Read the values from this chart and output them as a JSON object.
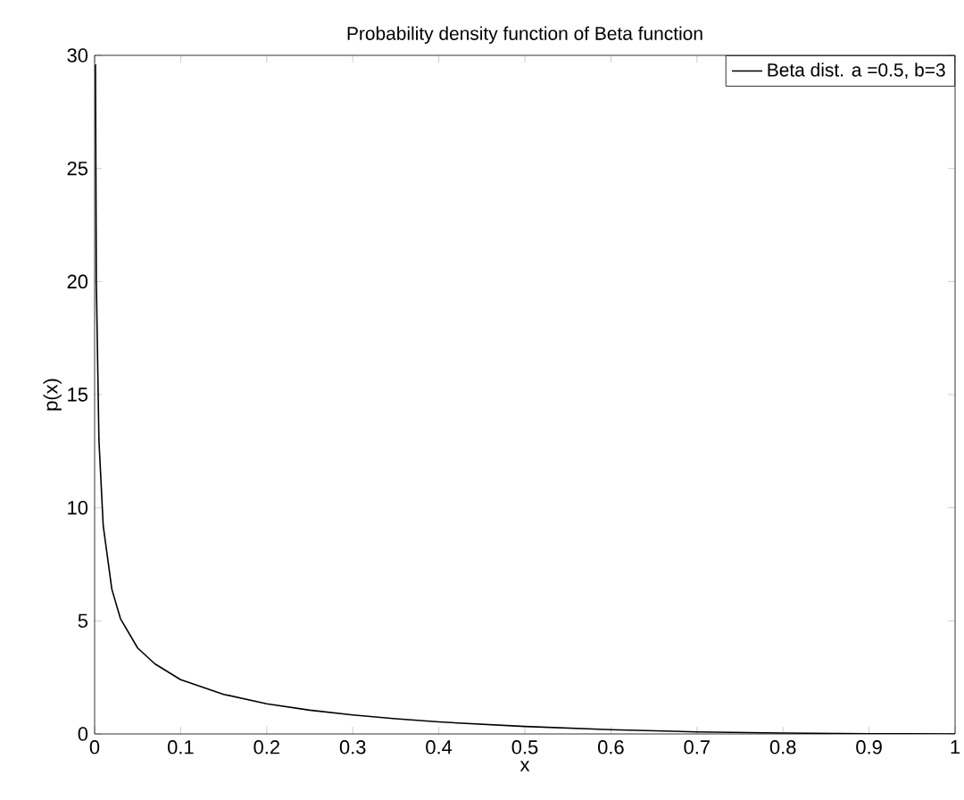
{
  "chart_data": {
    "type": "line",
    "title": "Probability density function of Beta function",
    "xlabel": "x",
    "ylabel": "p(x)",
    "x": [
      0.001,
      0.002,
      0.005,
      0.01,
      0.02,
      0.03,
      0.05,
      0.07,
      0.1,
      0.15,
      0.2,
      0.25,
      0.3,
      0.35,
      0.4,
      0.5,
      0.6,
      0.7,
      0.8,
      0.9,
      1.0
    ],
    "series": [
      {
        "name": "Beta dist. a =0.5, b=3",
        "color": "#000000",
        "values": [
          29.6,
          20,
          13,
          9.2,
          6.4,
          5.1,
          3.8,
          3.1,
          2.4,
          1.75,
          1.33,
          1.05,
          0.84,
          0.67,
          0.53,
          0.33,
          0.19,
          0.09,
          0.04,
          0.01,
          0
        ]
      }
    ],
    "xlim": [
      0,
      1
    ],
    "ylim": [
      0,
      30
    ],
    "xticks": [
      0,
      0.1,
      0.2,
      0.3,
      0.4,
      0.5,
      0.6,
      0.7,
      0.8,
      0.9,
      1
    ],
    "yticks": [
      0,
      5,
      10,
      15,
      20,
      25,
      30
    ],
    "legend": "top right",
    "grid": false,
    "line_style": "solid",
    "marker": "none"
  }
}
